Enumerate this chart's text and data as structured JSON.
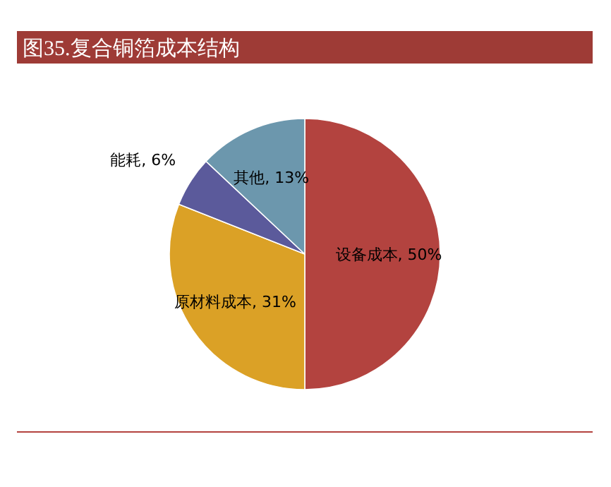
{
  "chart_data": {
    "type": "pie",
    "title": "图35.复合铜箔成本结构",
    "categories": [
      "设备成本",
      "原材料成本",
      "能耗",
      "其他"
    ],
    "values": [
      50,
      31,
      6,
      13
    ],
    "colors": [
      "#b3433f",
      "#dba126",
      "#5b5a9b",
      "#6c97ad"
    ],
    "value_labels": [
      "50%",
      "31%",
      "6%",
      "13%"
    ]
  }
}
